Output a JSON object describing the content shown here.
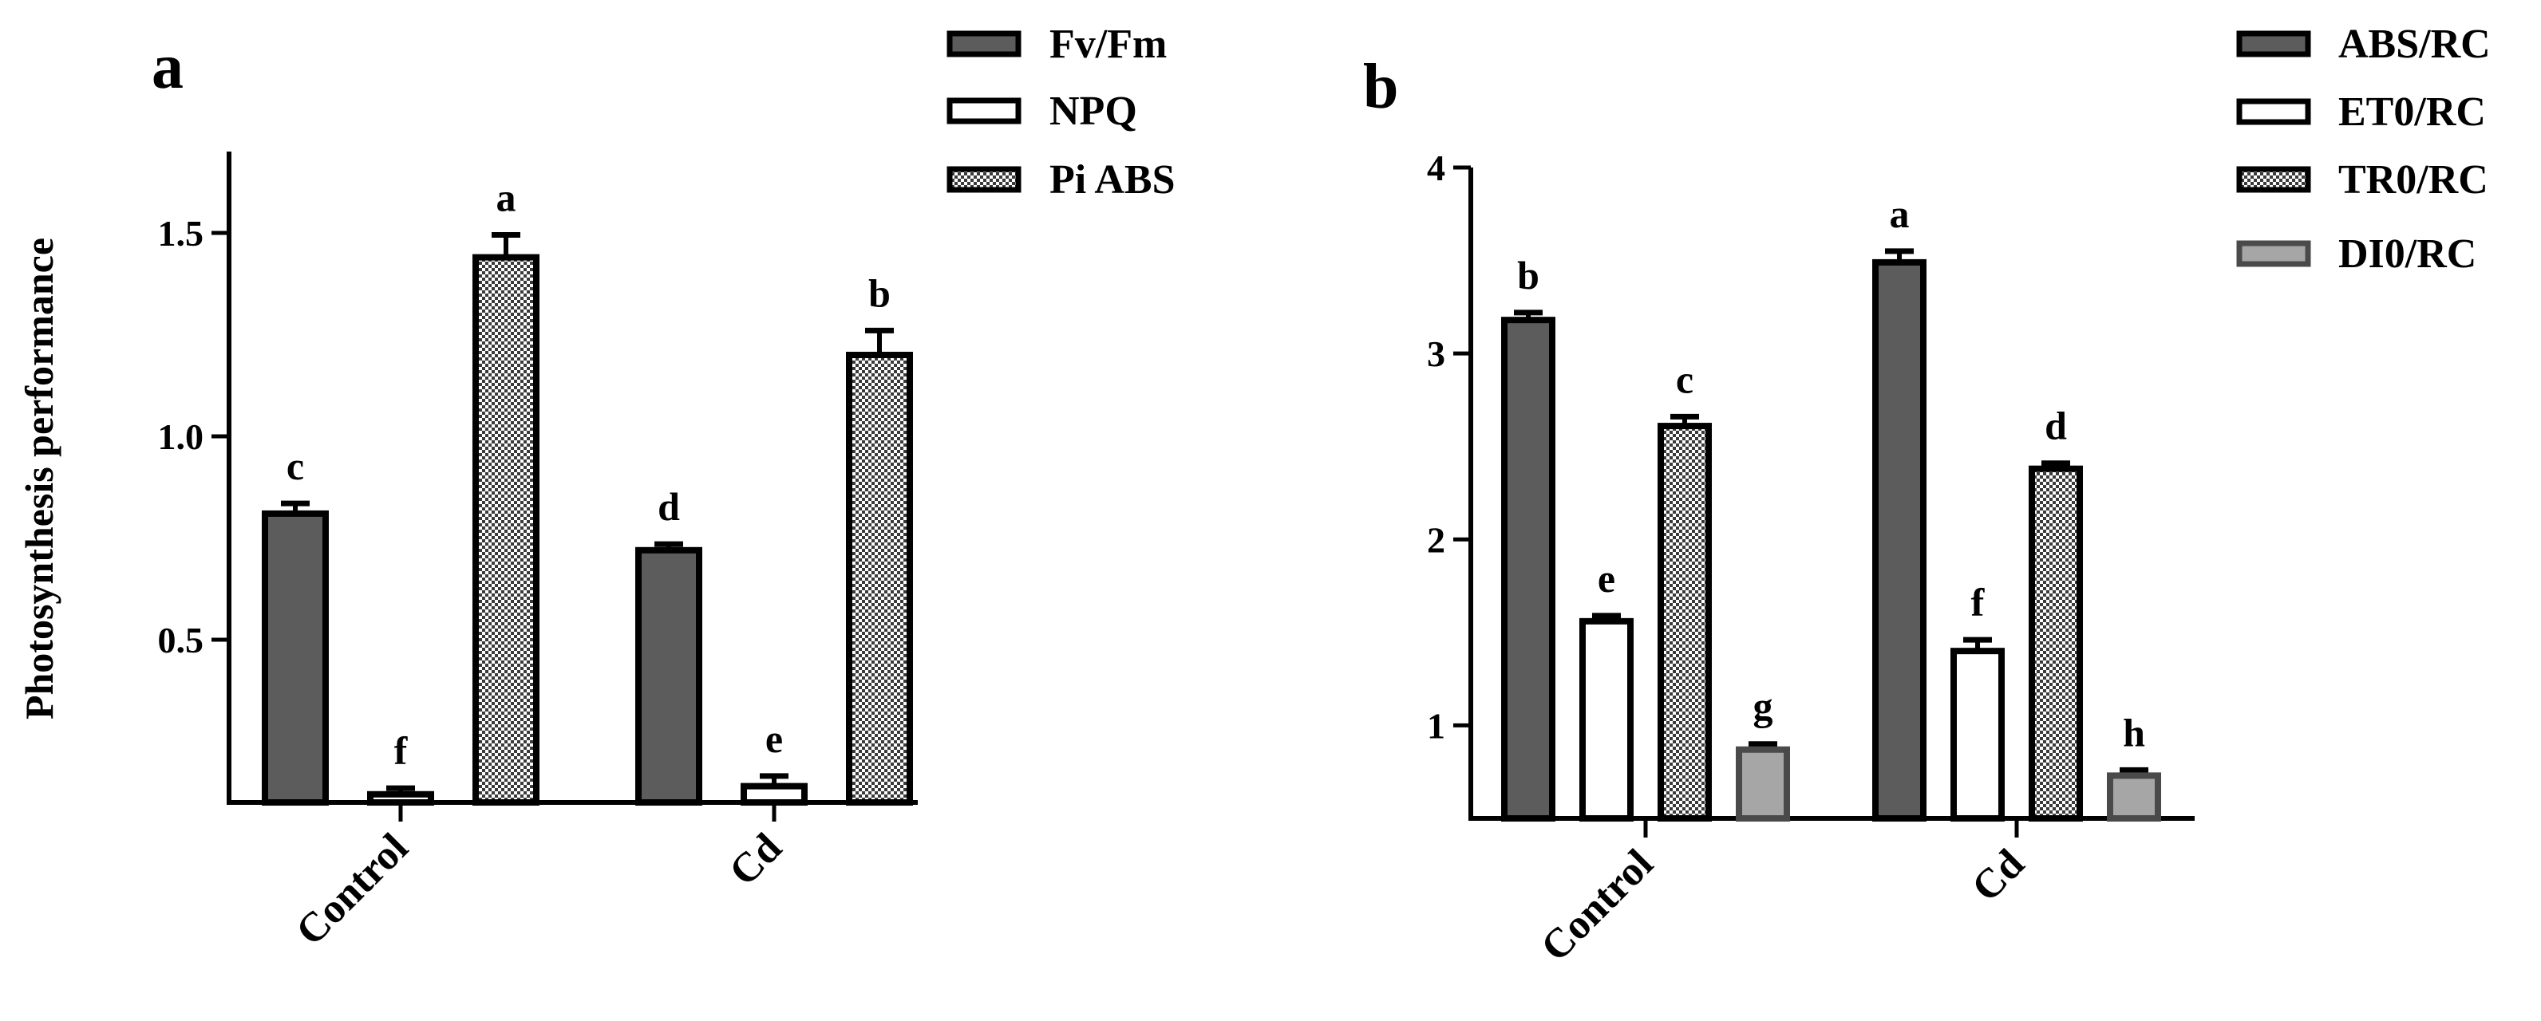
{
  "chart_data": [
    {
      "panel": "a",
      "type": "bar",
      "title": "",
      "xlabel": "",
      "ylabel": "Photosynthesis performance",
      "categories": [
        "Control",
        "Cd"
      ],
      "ylim": [
        0.1,
        1.7
      ],
      "yticks": [
        0.5,
        1.0,
        1.5
      ],
      "ytick_labels": [
        "0.5",
        "1.0",
        "1.5"
      ],
      "grid": false,
      "legend_position": "top-right",
      "series": [
        {
          "name": "Fv/Fm",
          "values": [
            0.81,
            0.72
          ],
          "errors": [
            0.025,
            0.015
          ],
          "letters": [
            "c",
            "d"
          ],
          "fill": "#5c5c5c",
          "pattern": "solid"
        },
        {
          "name": "NPQ",
          "values": [
            0.12,
            0.14
          ],
          "errors": [
            0.015,
            0.025
          ],
          "letters": [
            "f",
            "e"
          ],
          "fill": "#ffffff",
          "pattern": "solid"
        },
        {
          "name": "Pi ABS",
          "values": [
            1.44,
            1.2
          ],
          "errors": [
            0.055,
            0.06
          ],
          "letters": [
            "a",
            "b"
          ],
          "fill": "#ffffff",
          "pattern": "checker"
        }
      ]
    },
    {
      "panel": "b",
      "type": "bar",
      "title": "",
      "xlabel": "",
      "ylabel": "",
      "categories": [
        "Control",
        "Cd"
      ],
      "ylim": [
        0.5,
        4.0
      ],
      "yticks": [
        1,
        2,
        3,
        4
      ],
      "ytick_labels": [
        "1",
        "2",
        "3",
        "4"
      ],
      "grid": false,
      "legend_position": "top-right",
      "series": [
        {
          "name": "ABS/RC",
          "values": [
            3.18,
            3.49
          ],
          "errors": [
            0.04,
            0.06
          ],
          "letters": [
            "b",
            "a"
          ],
          "fill": "#5c5c5c",
          "pattern": "solid"
        },
        {
          "name": "ET0/RC",
          "values": [
            1.56,
            1.4
          ],
          "errors": [
            0.03,
            0.06
          ],
          "letters": [
            "e",
            "f"
          ],
          "fill": "#ffffff",
          "pattern": "solid"
        },
        {
          "name": "TR0/RC",
          "values": [
            2.61,
            2.38
          ],
          "errors": [
            0.05,
            0.03
          ],
          "letters": [
            "c",
            "d"
          ],
          "fill": "#ffffff",
          "pattern": "checker"
        },
        {
          "name": "DI0/RC",
          "values": [
            0.87,
            0.73
          ],
          "errors": [
            0.03,
            0.03
          ],
          "letters": [
            "g",
            "h"
          ],
          "fill": "#a6a6a6",
          "pattern": "solid"
        }
      ]
    }
  ]
}
